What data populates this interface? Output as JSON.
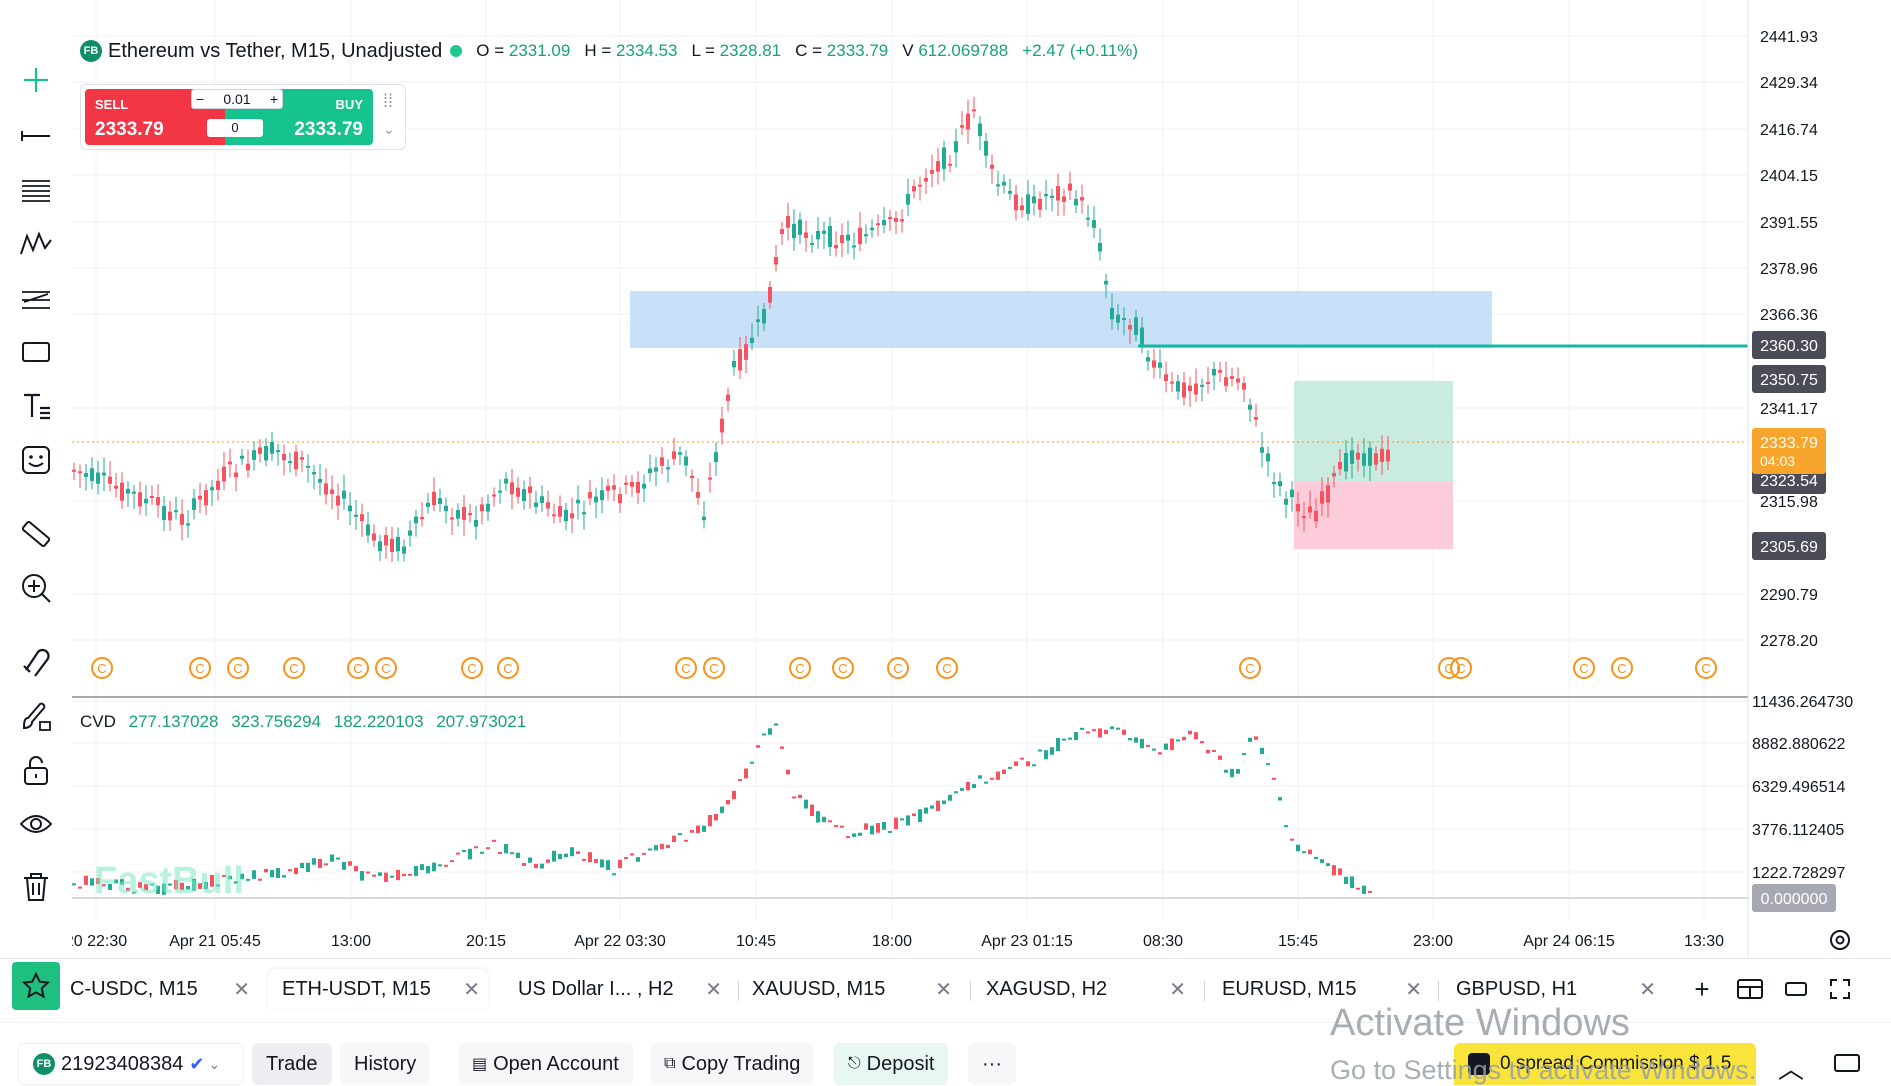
{
  "colors": {
    "up": "#22ab94",
    "down": "#f7525f",
    "accent": "#16c28e",
    "sell": "#f23645",
    "orange": "#f7931a",
    "zone_blue": "#bcd8f7",
    "tp_green": "#bfe8da",
    "sl_pink": "#fbc3d3",
    "level_line": "#14b8a6"
  },
  "toolbar": {
    "icons": [
      "crosshair-icon",
      "line-tool-icon",
      "fib-icon",
      "pattern-icon",
      "channel-icon",
      "rectangle-icon",
      "text-icon",
      "emoji-icon",
      "ruler-icon",
      "zoom-in-icon",
      "magnet-icon",
      "brush-lock-icon",
      "unlock-icon",
      "eye-icon",
      "trash-icon"
    ]
  },
  "legend": {
    "badge": "FB",
    "symbol": "Ethereum vs Tether, M15, Unadjusted",
    "o_label": "O =",
    "o": "2331.09",
    "h_label": "H =",
    "h": "2334.53",
    "l_label": "L =",
    "l": "2328.81",
    "c_label": "C =",
    "c": "2333.79",
    "v_label": "V",
    "v": "612.069788",
    "change": "+2.47 (+0.11%)"
  },
  "trade_widget": {
    "sell_label": "SELL",
    "sell_price": "2333.79",
    "buy_label": "BUY",
    "buy_price": "2333.79",
    "lot": "0.01",
    "minus": "−",
    "plus": "+",
    "qty": "0"
  },
  "cvd": {
    "label": "CVD",
    "values": [
      "277.137028",
      "323.756294",
      "182.220103",
      "207.973021"
    ]
  },
  "watermark": "FastBull",
  "price_axis": {
    "ticks": [
      "2441.93",
      "2429.34",
      "2416.74",
      "2404.15",
      "2391.55",
      "2378.96",
      "2366.36",
      "2341.17",
      "2315.98",
      "2290.79",
      "2278.20"
    ]
  },
  "price_labels": {
    "level1": "2360.30",
    "level2": "2350.75",
    "current": "2333.79",
    "countdown": "04:03",
    "level3": "2323.54",
    "level4": "2305.69"
  },
  "cvd_axis": {
    "ticks": [
      "11436.264730",
      "8882.880622",
      "6329.496514",
      "3776.112405",
      "1222.728297"
    ],
    "zero": "0.000000"
  },
  "time_axis": {
    "ticks": [
      "20 22:30",
      "Apr 21 05:45",
      "13:00",
      "20:15",
      "Apr 22 03:30",
      "10:45",
      "18:00",
      "Apr 23 01:15",
      "08:30",
      "15:45",
      "23:00",
      "Apr 24 06:15",
      "13:30"
    ]
  },
  "tabs": [
    {
      "label": "C-USDC, M15"
    },
    {
      "label": "ETH-USDT, M15"
    },
    {
      "label": "US Dollar I... , H2"
    },
    {
      "label": "XAUUSD, M15"
    },
    {
      "label": "XAGUSD, H2"
    },
    {
      "label": "EURUSD, M15"
    },
    {
      "label": "GBPUSD, H1"
    }
  ],
  "bottom": {
    "account_badge": "FB",
    "account": "21923408384",
    "trade": "Trade",
    "history": "History",
    "open_account": "Open Account",
    "copy_trading": "Copy Trading",
    "deposit": "Deposit",
    "more": "···"
  },
  "promo": "0 spread Commission $ 1.5",
  "activate_title": "Activate Windows",
  "activate_sub": "Go to Settings to activate Windows."
}
